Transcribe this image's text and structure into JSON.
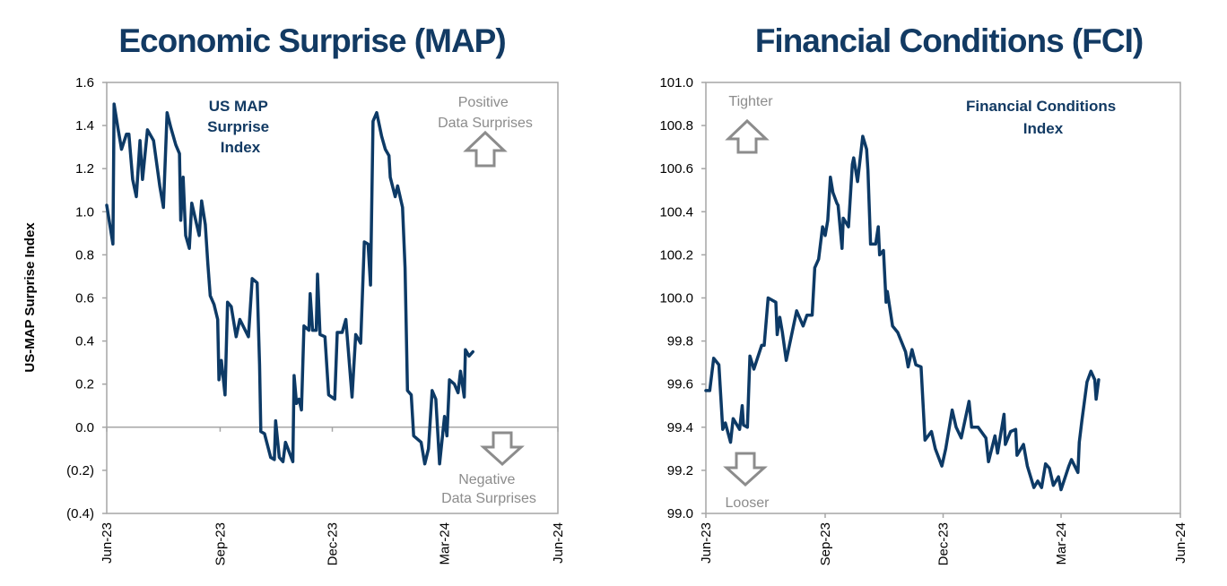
{
  "colors": {
    "line": "#0d3a66",
    "title": "#123a63",
    "axis": "#a6a6a6",
    "annotation": "#8c8c8c"
  },
  "chart_data": [
    {
      "type": "line",
      "title": "Economic Surprise (MAP)",
      "ylabel": "US-MAP Surprise Index",
      "xlabel": "",
      "ylim": [
        -0.4,
        1.6
      ],
      "xlim": [
        "2023-06-01",
        "2024-06-01"
      ],
      "yticks": [
        1.6,
        1.4,
        1.2,
        1.0,
        0.8,
        0.6,
        0.4,
        0.2,
        0.0,
        -0.2,
        -0.4
      ],
      "ytick_labels": [
        "1.6",
        "1.4",
        "1.2",
        "1.0",
        "0.8",
        "0.6",
        "0.4",
        "0.2",
        "0.0",
        "(0.2)",
        "(0.4)"
      ],
      "xticks": [
        "2023-06-01",
        "2023-09-01",
        "2023-12-01",
        "2024-03-01",
        "2024-06-01"
      ],
      "xtick_labels": [
        "Jun-23",
        "Sep-23",
        "Dec-23",
        "Mar-24",
        "Jun-24"
      ],
      "zero_line": true,
      "grid": false,
      "annotations": {
        "series_label": [
          "US MAP",
          "Surprise",
          "Index"
        ],
        "positive": [
          "Positive",
          "Data Surprises"
        ],
        "negative": [
          "Negative",
          "Data Surprises"
        ],
        "up_arrow_icon": "arrow-up-outline",
        "down_arrow_icon": "arrow-down-outline"
      },
      "series": [
        {
          "x": [
            "2023-06-01",
            "2023-06-06",
            "2023-06-07",
            "2023-06-10",
            "2023-06-13",
            "2023-06-17",
            "2023-06-19",
            "2023-06-22",
            "2023-06-25",
            "2023-06-28",
            "2023-06-30",
            "2023-07-04",
            "2023-07-09",
            "2023-07-14",
            "2023-07-17",
            "2023-07-20",
            "2023-07-23",
            "2023-07-27",
            "2023-07-30",
            "2023-07-31",
            "2023-08-02",
            "2023-08-04",
            "2023-08-07",
            "2023-08-09",
            "2023-08-15",
            "2023-08-17",
            "2023-08-20",
            "2023-08-22",
            "2023-08-24",
            "2023-08-27",
            "2023-08-30",
            "2023-08-31",
            "2023-09-02",
            "2023-09-05",
            "2023-09-07",
            "2023-09-10",
            "2023-09-14",
            "2023-09-17",
            "2023-09-24",
            "2023-09-27",
            "2023-10-01",
            "2023-10-03",
            "2023-10-04",
            "2023-10-07",
            "2023-10-12",
            "2023-10-15",
            "2023-10-16",
            "2023-10-19",
            "2023-10-22",
            "2023-10-24",
            "2023-10-30",
            "2023-10-31",
            "2023-11-02",
            "2023-11-04",
            "2023-11-06",
            "2023-11-08",
            "2023-11-12",
            "2023-11-13",
            "2023-11-15",
            "2023-11-18",
            "2023-11-19",
            "2023-11-21",
            "2023-11-25",
            "2023-11-28",
            "2023-12-03",
            "2023-12-05",
            "2023-12-09",
            "2023-12-12",
            "2023-12-17",
            "2023-12-20",
            "2023-12-24",
            "2023-12-27",
            "2023-12-30",
            "2024-01-01",
            "2024-01-03",
            "2024-01-06",
            "2024-01-10",
            "2024-01-13",
            "2024-01-16",
            "2024-01-17",
            "2024-01-21",
            "2024-01-23",
            "2024-01-27",
            "2024-01-29",
            "2024-01-31",
            "2024-02-03",
            "2024-02-05",
            "2024-02-11",
            "2024-02-14",
            "2024-02-17",
            "2024-02-20",
            "2024-02-23",
            "2024-02-26",
            "2024-03-01",
            "2024-03-03",
            "2024-03-05",
            "2024-03-09",
            "2024-03-12",
            "2024-03-14",
            "2024-03-17",
            "2024-03-18",
            "2024-03-21",
            "2024-03-24"
          ],
          "y": [
            1.03,
            0.85,
            1.5,
            1.39,
            1.29,
            1.36,
            1.36,
            1.15,
            1.07,
            1.33,
            1.15,
            1.38,
            1.33,
            1.12,
            1.02,
            1.46,
            1.39,
            1.31,
            1.27,
            0.96,
            1.16,
            0.89,
            0.83,
            1.04,
            0.89,
            1.05,
            0.94,
            0.76,
            0.61,
            0.57,
            0.5,
            0.22,
            0.31,
            0.15,
            0.58,
            0.56,
            0.42,
            0.5,
            0.42,
            0.69,
            0.67,
            0.29,
            -0.02,
            -0.03,
            -0.14,
            -0.15,
            0.03,
            -0.14,
            -0.16,
            -0.07,
            -0.16,
            0.24,
            0.11,
            0.13,
            0.08,
            0.47,
            0.45,
            0.62,
            0.45,
            0.45,
            0.71,
            0.43,
            0.42,
            0.15,
            0.13,
            0.44,
            0.44,
            0.5,
            0.14,
            0.43,
            0.39,
            0.86,
            0.85,
            0.66,
            1.42,
            1.46,
            1.35,
            1.29,
            1.26,
            1.16,
            1.07,
            1.12,
            1.02,
            0.74,
            0.17,
            0.15,
            -0.04,
            -0.07,
            -0.17,
            -0.1,
            0.17,
            0.13,
            -0.17,
            0.05,
            -0.04,
            0.22,
            0.2,
            0.16,
            0.26,
            0.14,
            0.36,
            0.33,
            0.35
          ]
        }
      ]
    },
    {
      "type": "line",
      "title": "Financial Conditions (FCI)",
      "ylabel": "",
      "xlabel": "",
      "ylim": [
        99.0,
        101.0
      ],
      "xlim": [
        "2023-06-01",
        "2024-06-01"
      ],
      "yticks": [
        101.0,
        100.8,
        100.6,
        100.4,
        100.2,
        100.0,
        99.8,
        99.6,
        99.4,
        99.2,
        99.0
      ],
      "ytick_labels": [
        "101.0",
        "100.8",
        "100.6",
        "100.4",
        "100.2",
        "100.0",
        "99.8",
        "99.6",
        "99.4",
        "99.2",
        "99.0"
      ],
      "xticks": [
        "2023-06-01",
        "2023-09-01",
        "2023-12-01",
        "2024-03-01",
        "2024-06-01"
      ],
      "xtick_labels": [
        "Jun-23",
        "Sep-23",
        "Dec-23",
        "Mar-24",
        "Jun-24"
      ],
      "zero_line": false,
      "grid": false,
      "annotations": {
        "series_label": [
          "Financial Conditions",
          "Index"
        ],
        "positive": [
          "Tighter"
        ],
        "negative": [
          "Looser"
        ],
        "up_arrow_icon": "arrow-up-outline",
        "down_arrow_icon": "arrow-down-outline"
      },
      "series": [
        {
          "x": [
            "2023-06-01",
            "2023-06-04",
            "2023-06-07",
            "2023-06-11",
            "2023-06-14",
            "2023-06-16",
            "2023-06-20",
            "2023-06-22",
            "2023-06-27",
            "2023-06-29",
            "2023-06-30",
            "2023-07-03",
            "2023-07-05",
            "2023-07-08",
            "2023-07-14",
            "2023-07-16",
            "2023-07-19",
            "2023-07-25",
            "2023-07-26",
            "2023-07-28",
            "2023-07-30",
            "2023-08-02",
            "2023-08-10",
            "2023-08-15",
            "2023-08-18",
            "2023-08-22",
            "2023-08-24",
            "2023-08-27",
            "2023-08-30",
            "2023-09-01",
            "2023-09-03",
            "2023-09-05",
            "2023-09-07",
            "2023-09-10",
            "2023-09-11",
            "2023-09-14",
            "2023-09-15",
            "2023-09-19",
            "2023-09-22",
            "2023-09-23",
            "2023-09-26",
            "2023-09-30",
            "2023-10-03",
            "2023-10-04",
            "2023-10-06",
            "2023-10-10",
            "2023-10-12",
            "2023-10-13",
            "2023-10-16",
            "2023-10-18",
            "2023-10-19",
            "2023-10-23",
            "2023-10-27",
            "2023-11-02",
            "2023-11-04",
            "2023-11-07",
            "2023-11-10",
            "2023-11-14",
            "2023-11-17",
            "2023-11-22",
            "2023-11-25",
            "2023-11-30",
            "2023-12-03",
            "2023-12-08",
            "2023-12-11",
            "2023-12-15",
            "2023-12-21",
            "2023-12-23",
            "2023-12-28",
            "2024-01-03",
            "2024-01-05",
            "2024-01-10",
            "2024-01-12",
            "2024-01-17",
            "2024-01-18",
            "2024-01-22",
            "2024-01-26",
            "2024-01-27",
            "2024-02-01",
            "2024-02-04",
            "2024-02-09",
            "2024-02-12",
            "2024-02-15",
            "2024-02-18",
            "2024-02-21",
            "2024-02-24",
            "2024-02-28",
            "2024-03-01",
            "2024-03-07",
            "2024-03-09",
            "2024-03-14",
            "2024-03-15",
            "2024-03-17",
            "2024-03-21",
            "2024-03-24",
            "2024-03-27",
            "2024-03-28",
            "2024-03-30"
          ],
          "y": [
            99.57,
            99.57,
            99.72,
            99.69,
            99.39,
            99.42,
            99.33,
            99.44,
            99.39,
            99.5,
            99.41,
            99.4,
            99.73,
            99.67,
            99.78,
            99.78,
            100.0,
            99.98,
            99.83,
            99.91,
            99.84,
            99.71,
            99.94,
            99.87,
            99.92,
            99.92,
            100.14,
            100.18,
            100.33,
            100.29,
            100.36,
            100.56,
            100.49,
            100.44,
            100.43,
            100.23,
            100.37,
            100.33,
            100.62,
            100.65,
            100.54,
            100.75,
            100.69,
            100.59,
            100.25,
            100.25,
            100.33,
            100.2,
            100.22,
            99.98,
            100.03,
            99.87,
            99.84,
            99.75,
            99.68,
            99.76,
            99.69,
            99.68,
            99.34,
            99.38,
            99.3,
            99.22,
            99.3,
            99.48,
            99.4,
            99.35,
            99.52,
            99.4,
            99.4,
            99.35,
            99.24,
            99.36,
            99.28,
            99.46,
            99.32,
            99.38,
            99.39,
            99.27,
            99.32,
            99.22,
            99.12,
            99.15,
            99.12,
            99.23,
            99.21,
            99.13,
            99.17,
            99.11,
            99.22,
            99.25,
            99.19,
            99.33,
            99.43,
            99.61,
            99.66,
            99.62,
            99.53,
            99.62
          ]
        }
      ]
    }
  ]
}
